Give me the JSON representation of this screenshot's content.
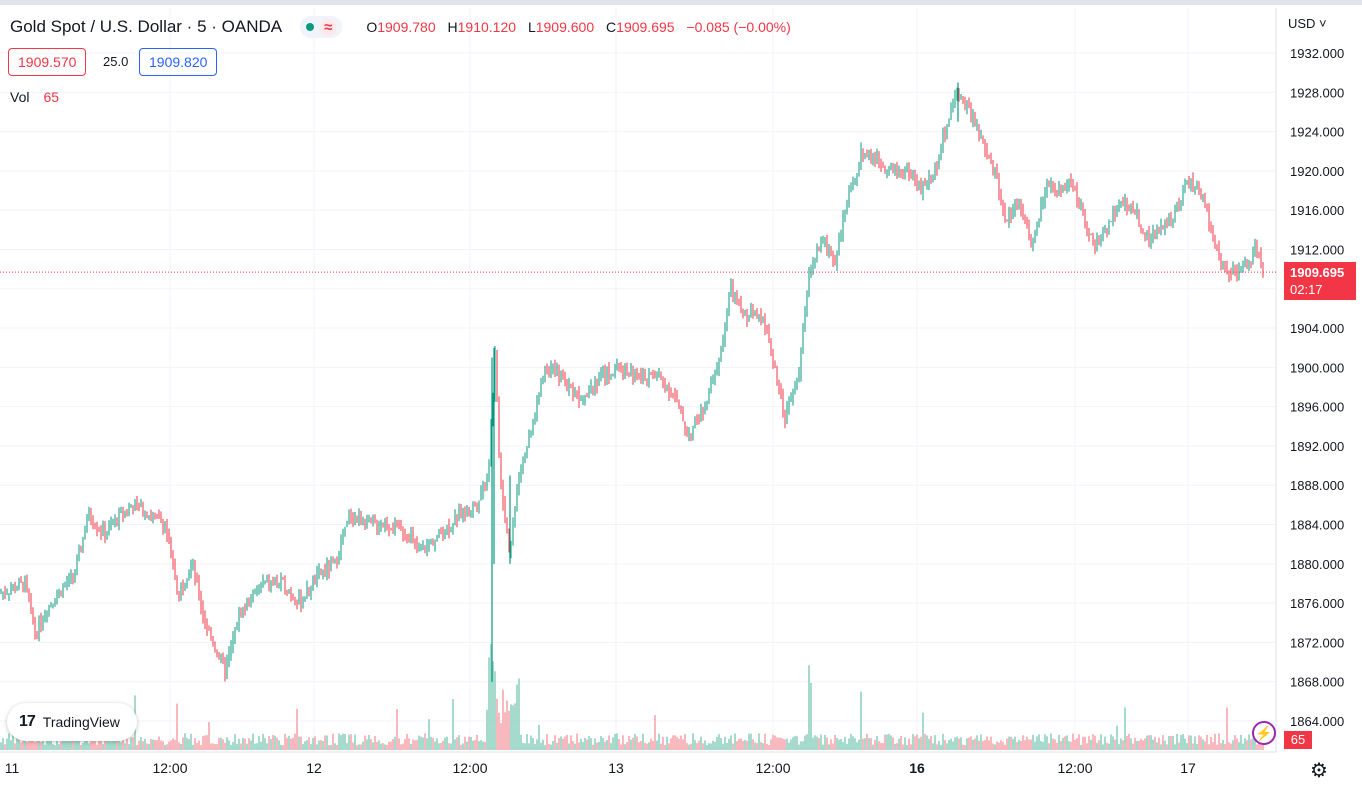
{
  "header": {
    "symbol": "Gold Spot / U.S. Dollar · 5 · OANDA",
    "status_icon": "wave-icon",
    "status_glyph": "≈",
    "ohlc": {
      "o_key": "O",
      "o_val": "1909.780",
      "h_key": "H",
      "h_val": "1910.120",
      "l_key": "L",
      "l_val": "1909.600",
      "c_key": "C",
      "c_val": "1909.695",
      "change": "−0.085 (−0.00%)"
    }
  },
  "quotes": {
    "sell": "1909.570",
    "spread": "25.0",
    "buy": "1909.820"
  },
  "volume_legend": {
    "label": "Vol",
    "value": "65"
  },
  "currency_menu": "USD ˅",
  "last_price": {
    "price": "1909.695",
    "countdown": "02:17"
  },
  "volume_last": "65",
  "logo": {
    "text": "TradingView",
    "mark": "17"
  },
  "colors": {
    "up": "#089981",
    "down": "#f23645",
    "up_vol": "#8fd1c1",
    "down_vol": "#f7a8ae",
    "grid": "#f0f3fa"
  },
  "chart_data": {
    "type": "candlestick",
    "ylim": [
      1862,
      1934
    ],
    "y_ticks": [
      "1932.000",
      "1928.000",
      "1924.000",
      "1920.000",
      "1916.000",
      "1912.000",
      "1908.000",
      "1904.000",
      "1900.000",
      "1896.000",
      "1892.000",
      "1888.000",
      "1884.000",
      "1880.000",
      "1876.000",
      "1872.000",
      "1868.000",
      "1864.000"
    ],
    "x_ticks": [
      "11",
      "12:00",
      "12",
      "12:00",
      "13",
      "12:00",
      "16",
      "12:00",
      "17"
    ],
    "x_bold": [
      false,
      false,
      false,
      false,
      false,
      false,
      true,
      false,
      false
    ],
    "last_price": 1909.695,
    "price_path": [
      [
        0,
        1877
      ],
      [
        25,
        1878
      ],
      [
        35,
        1873
      ],
      [
        50,
        1876
      ],
      [
        75,
        1879
      ],
      [
        88,
        1885
      ],
      [
        105,
        1883
      ],
      [
        120,
        1885
      ],
      [
        135,
        1886
      ],
      [
        150,
        1885
      ],
      [
        165,
        1884
      ],
      [
        178,
        1877
      ],
      [
        192,
        1880
      ],
      [
        205,
        1874
      ],
      [
        225,
        1869
      ],
      [
        240,
        1875
      ],
      [
        262,
        1878
      ],
      [
        282,
        1878
      ],
      [
        300,
        1876
      ],
      [
        320,
        1879
      ],
      [
        335,
        1880
      ],
      [
        350,
        1885
      ],
      [
        370,
        1884
      ],
      [
        390,
        1884
      ],
      [
        410,
        1883
      ],
      [
        418,
        1881
      ],
      [
        440,
        1883
      ],
      [
        460,
        1885
      ],
      [
        475,
        1886
      ],
      [
        488,
        1889
      ],
      [
        495,
        1901
      ],
      [
        500,
        1889
      ],
      [
        510,
        1881
      ],
      [
        518,
        1889
      ],
      [
        530,
        1893
      ],
      [
        545,
        1900
      ],
      [
        560,
        1899
      ],
      [
        580,
        1897
      ],
      [
        600,
        1899
      ],
      [
        620,
        1900
      ],
      [
        640,
        1899
      ],
      [
        660,
        1899
      ],
      [
        675,
        1897
      ],
      [
        688,
        1893
      ],
      [
        705,
        1896
      ],
      [
        720,
        1901
      ],
      [
        730,
        1908
      ],
      [
        745,
        1905
      ],
      [
        760,
        1906
      ],
      [
        775,
        1900
      ],
      [
        785,
        1895
      ],
      [
        798,
        1899
      ],
      [
        810,
        1910
      ],
      [
        822,
        1913
      ],
      [
        835,
        1911
      ],
      [
        848,
        1917
      ],
      [
        862,
        1922
      ],
      [
        878,
        1921
      ],
      [
        895,
        1920
      ],
      [
        910,
        1920
      ],
      [
        920,
        1918
      ],
      [
        935,
        1920
      ],
      [
        950,
        1926
      ],
      [
        958,
        1928
      ],
      [
        970,
        1926
      ],
      [
        985,
        1922
      ],
      [
        997,
        1919
      ],
      [
        1005,
        1915
      ],
      [
        1020,
        1917
      ],
      [
        1032,
        1912
      ],
      [
        1045,
        1918
      ],
      [
        1058,
        1918
      ],
      [
        1070,
        1919
      ],
      [
        1082,
        1916
      ],
      [
        1095,
        1912
      ],
      [
        1105,
        1914
      ],
      [
        1120,
        1917
      ],
      [
        1135,
        1916
      ],
      [
        1148,
        1913
      ],
      [
        1160,
        1914
      ],
      [
        1175,
        1916
      ],
      [
        1188,
        1919
      ],
      [
        1200,
        1918
      ],
      [
        1212,
        1914
      ],
      [
        1222,
        1910
      ],
      [
        1235,
        1910
      ],
      [
        1244,
        1910
      ],
      [
        1256,
        1912
      ],
      [
        1264,
        1909.7
      ]
    ],
    "volume_hint": "varies per bar; spikes near x≈492 (~63) and x≈810 (~55)"
  }
}
